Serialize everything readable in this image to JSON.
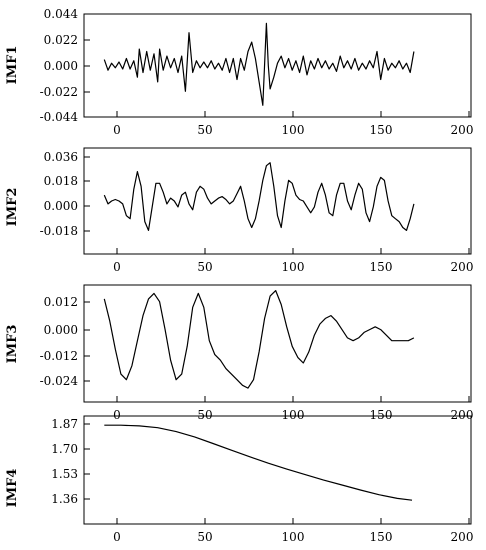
{
  "chart_data": [
    {
      "type": "line",
      "ylabel": "IMF1",
      "xlim": [
        -10,
        200
      ],
      "ylim": [
        -0.044,
        0.044
      ],
      "yticks": [
        "0.044",
        "0.022",
        "0.000",
        "-0.022",
        "-0.044"
      ],
      "xticks": [
        "0",
        "50",
        "100",
        "150",
        "200"
      ],
      "series": [
        {
          "x": [
            1,
            3,
            5,
            7,
            9,
            11,
            13,
            15,
            17,
            19,
            20,
            22,
            24,
            26,
            28,
            30,
            31,
            33,
            35,
            37,
            39,
            41,
            43,
            45,
            47,
            49,
            51,
            53,
            55,
            57,
            59,
            61,
            63,
            65,
            67,
            69,
            71,
            73,
            75,
            77,
            79,
            81,
            83,
            85,
            87,
            89,
            90,
            91,
            93,
            95,
            97,
            99,
            101,
            103,
            105,
            107,
            109,
            111,
            113,
            115,
            117,
            119,
            121,
            123,
            125,
            127,
            129,
            131,
            133,
            135,
            137,
            139,
            141,
            143,
            145,
            147,
            149,
            151,
            153,
            155,
            157,
            159,
            161,
            163,
            165,
            167,
            169
          ],
          "y": [
            0.005,
            -0.004,
            0.002,
            -0.002,
            0.003,
            -0.003,
            0.006,
            -0.003,
            0.004,
            -0.01,
            0.014,
            -0.006,
            0.012,
            -0.004,
            0.01,
            -0.014,
            0.014,
            -0.004,
            0.008,
            -0.002,
            0.006,
            -0.006,
            0.008,
            -0.022,
            0.028,
            -0.006,
            0.004,
            -0.002,
            0.003,
            -0.002,
            0.004,
            -0.003,
            0.002,
            -0.004,
            0.006,
            -0.006,
            0.006,
            -0.012,
            0.006,
            -0.004,
            0.012,
            0.02,
            0.006,
            -0.014,
            -0.034,
            0.036,
            0.0,
            -0.02,
            -0.01,
            0.002,
            0.008,
            -0.002,
            0.006,
            -0.004,
            0.004,
            -0.006,
            0.008,
            -0.008,
            0.004,
            -0.003,
            0.006,
            -0.002,
            0.004,
            -0.003,
            0.002,
            -0.005,
            0.008,
            -0.002,
            0.004,
            -0.003,
            0.006,
            -0.004,
            0.002,
            -0.003,
            0.004,
            -0.002,
            0.012,
            -0.012,
            0.006,
            -0.004,
            0.002,
            -0.002,
            0.004,
            -0.003,
            0.002,
            -0.006,
            0.012
          ]
        }
      ]
    },
    {
      "type": "line",
      "ylabel": "IMF2",
      "xlim": [
        -10,
        200
      ],
      "ylim": [
        -0.036,
        0.036
      ],
      "yticks": [
        "0.036",
        "0.018",
        "0.000",
        "-0.018"
      ],
      "xticks": [
        "0",
        "50",
        "100",
        "150",
        "200"
      ],
      "series": [
        {
          "x": [
            1,
            3,
            5,
            7,
            9,
            11,
            13,
            15,
            17,
            19,
            21,
            23,
            25,
            27,
            29,
            31,
            33,
            35,
            37,
            39,
            41,
            43,
            45,
            47,
            49,
            51,
            53,
            55,
            57,
            59,
            61,
            63,
            65,
            67,
            69,
            71,
            73,
            75,
            77,
            79,
            81,
            83,
            85,
            87,
            89,
            91,
            93,
            95,
            97,
            99,
            101,
            103,
            105,
            107,
            109,
            111,
            113,
            115,
            117,
            119,
            121,
            123,
            125,
            127,
            129,
            131,
            133,
            135,
            137,
            139,
            141,
            143,
            145,
            147,
            149,
            151,
            153,
            155,
            157,
            159,
            161,
            163,
            165,
            167,
            169
          ],
          "y": [
            0.004,
            -0.002,
            0.0,
            0.001,
            0.0,
            -0.002,
            -0.01,
            -0.012,
            0.008,
            0.02,
            0.01,
            -0.014,
            -0.02,
            -0.004,
            0.012,
            0.012,
            0.006,
            -0.002,
            0.002,
            0.0,
            -0.004,
            0.004,
            0.006,
            -0.002,
            -0.006,
            0.006,
            0.01,
            0.008,
            0.002,
            -0.002,
            0.0,
            0.002,
            0.003,
            0.001,
            -0.002,
            0.0,
            0.005,
            0.01,
            0.0,
            -0.012,
            -0.018,
            -0.012,
            0.0,
            0.014,
            0.024,
            0.026,
            0.01,
            -0.01,
            -0.018,
            0.0,
            0.014,
            0.012,
            0.004,
            0.001,
            0.0,
            -0.004,
            -0.008,
            -0.004,
            0.006,
            0.012,
            0.004,
            -0.008,
            -0.01,
            0.004,
            0.012,
            0.012,
            0.0,
            -0.006,
            0.004,
            0.012,
            0.008,
            -0.008,
            -0.014,
            -0.004,
            0.01,
            0.016,
            0.014,
            0.0,
            -0.01,
            -0.012,
            -0.014,
            -0.018,
            -0.02,
            -0.012,
            -0.002
          ]
        }
      ]
    },
    {
      "type": "line",
      "ylabel": "IMF3",
      "xlim": [
        -10,
        200
      ],
      "ylim": [
        -0.024,
        0.018
      ],
      "yticks": [
        "0.012",
        "0.000",
        "-0.012",
        "-0.024"
      ],
      "xticks": [
        "0",
        "50",
        "100",
        "150",
        "200"
      ],
      "series": [
        {
          "x": [
            1,
            4,
            7,
            10,
            13,
            16,
            19,
            22,
            25,
            28,
            31,
            34,
            37,
            40,
            43,
            46,
            49,
            52,
            55,
            58,
            61,
            64,
            67,
            70,
            73,
            76,
            79,
            82,
            85,
            88,
            91,
            94,
            97,
            100,
            103,
            106,
            109,
            112,
            115,
            118,
            121,
            124,
            127,
            130,
            133,
            136,
            139,
            142,
            145,
            148,
            151,
            154,
            157,
            160,
            163,
            166,
            169
          ],
          "y": [
            0.013,
            0.005,
            -0.005,
            -0.014,
            -0.016,
            -0.011,
            -0.002,
            0.007,
            0.013,
            0.015,
            0.012,
            0.002,
            -0.009,
            -0.016,
            -0.014,
            -0.004,
            0.01,
            0.015,
            0.01,
            -0.002,
            -0.007,
            -0.009,
            -0.012,
            -0.014,
            -0.016,
            -0.018,
            -0.019,
            -0.016,
            -0.006,
            0.006,
            0.014,
            0.016,
            0.011,
            0.003,
            -0.004,
            -0.008,
            -0.01,
            -0.006,
            0.0,
            0.004,
            0.006,
            0.007,
            0.005,
            0.002,
            -0.001,
            -0.002,
            -0.001,
            0.001,
            0.002,
            0.003,
            0.002,
            0.0,
            -0.002,
            -0.002,
            -0.002,
            -0.002,
            -0.001
          ]
        }
      ]
    },
    {
      "type": "line",
      "ylabel": "IMF4",
      "xlim": [
        -10,
        200
      ],
      "ylim": [
        1.28,
        1.87
      ],
      "yticks": [
        "1.87",
        "1.70",
        "1.53",
        "1.36"
      ],
      "xticks": [
        "0",
        "50",
        "100",
        "150",
        "200"
      ],
      "series": [
        {
          "x": [
            1,
            10,
            20,
            30,
            40,
            50,
            60,
            70,
            80,
            90,
            100,
            110,
            120,
            130,
            140,
            150,
            160,
            168
          ],
          "y": [
            1.82,
            1.82,
            1.816,
            1.806,
            1.785,
            1.756,
            1.72,
            1.683,
            1.647,
            1.612,
            1.58,
            1.55,
            1.52,
            1.493,
            1.466,
            1.44,
            1.42,
            1.41
          ]
        }
      ]
    }
  ]
}
